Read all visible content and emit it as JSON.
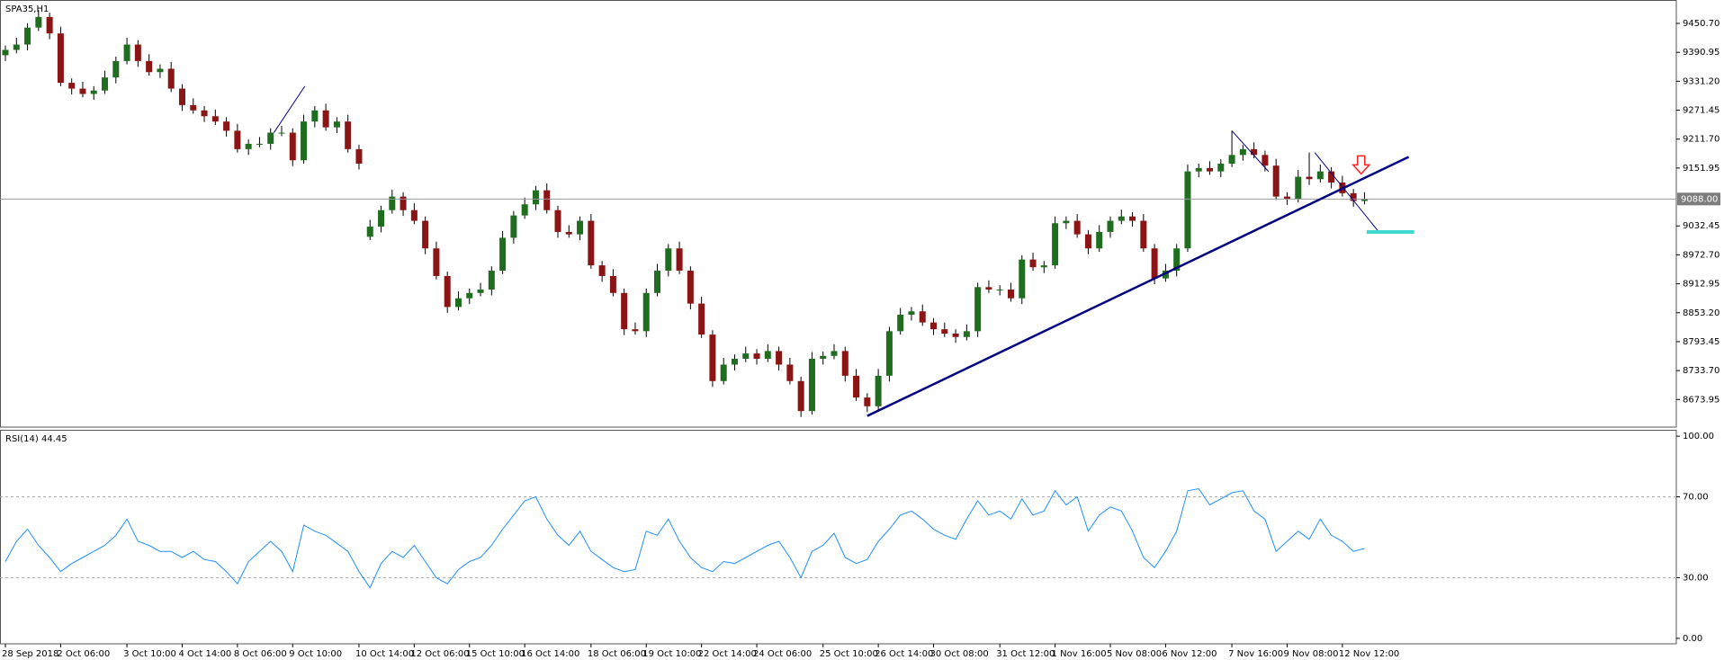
{
  "chart_data": [
    {
      "type": "candlestick",
      "title": "SPA35,H1",
      "categories": [
        "28 Sep 2018",
        null,
        null,
        null,
        null,
        "2 Oct 06:00",
        null,
        null,
        null,
        null,
        null,
        "3 Oct 10:00",
        null,
        null,
        null,
        null,
        "4 Oct 14:00",
        null,
        null,
        null,
        null,
        "8 Oct 06:00",
        null,
        null,
        null,
        null,
        "9 Oct 10:00",
        null,
        null,
        null,
        null,
        null,
        "10 Oct 14:00",
        null,
        null,
        null,
        null,
        "12 Oct 06:00",
        null,
        null,
        null,
        null,
        "15 Oct 10:00",
        null,
        null,
        null,
        null,
        "16 Oct 14:00",
        null,
        null,
        null,
        null,
        null,
        "18 Oct 06:00",
        null,
        null,
        null,
        null,
        "19 Oct 10:00",
        null,
        null,
        null,
        null,
        "22 Oct 14:00",
        null,
        null,
        null,
        null,
        "24 Oct 06:00",
        null,
        null,
        null,
        null,
        null,
        "25 Oct 10:00",
        null,
        null,
        null,
        null,
        "26 Oct 14:00",
        null,
        null,
        null,
        null,
        "30 Oct 08:00",
        null,
        null,
        null,
        null,
        null,
        "31 Oct 12:00",
        null,
        null,
        null,
        null,
        "1 Nov 16:00",
        null,
        null,
        null,
        null,
        "5 Nov 08:00",
        null,
        null,
        null,
        null,
        "6 Nov 12:00",
        null,
        null,
        null,
        null,
        null,
        "7 Nov 16:00",
        null,
        null,
        null,
        null,
        "9 Nov 08:00",
        null,
        null,
        null,
        null,
        "12 Nov 12:00",
        null,
        null
      ],
      "open": [
        9385,
        9396,
        9407,
        9442,
        9464,
        9430,
        9328,
        9316,
        9305,
        9312,
        9339,
        9373,
        9407,
        9373,
        9350,
        9357,
        9316,
        9282,
        9271,
        9259,
        9248,
        9229,
        9191,
        9202,
        9202,
        9225,
        9225,
        9168,
        9248,
        9271,
        9236,
        9248,
        9191,
        9010,
        9031,
        9065,
        9093,
        9065,
        9043,
        8986,
        8929,
        8865,
        8883,
        8894,
        8901,
        8940,
        9008,
        9054,
        9077,
        9106,
        9065,
        9020,
        9015,
        9043,
        8951,
        8929,
        8894,
        8819,
        8815,
        8894,
        8940,
        8986,
        8940,
        8872,
        8808,
        8712,
        8746,
        8758,
        8769,
        8758,
        8774,
        8746,
        8712,
        8650,
        8758,
        8764,
        8774,
        8723,
        8678,
        8660,
        8723,
        8815,
        8849,
        8856,
        8833,
        8819,
        8810,
        8803,
        8815,
        8906,
        8901,
        8901,
        8883,
        8963,
        8947,
        8951,
        9038,
        9043,
        9015,
        8986,
        9020,
        9043,
        9052,
        9043,
        8986,
        8924,
        8940,
        8986,
        9145,
        9152,
        9145,
        9161,
        9179,
        9191,
        9179,
        9157,
        9093,
        9088,
        9134,
        9129,
        9145,
        9122,
        9100,
        9084
      ],
      "high": [
        9405,
        9421,
        9451,
        9478,
        9473,
        9444,
        9337,
        9330,
        9321,
        9353,
        9382,
        9421,
        9416,
        9387,
        9366,
        9371,
        9325,
        9296,
        9280,
        9273,
        9257,
        9243,
        9211,
        9216,
        9234,
        9239,
        9234,
        9262,
        9280,
        9285,
        9257,
        9262,
        9200,
        9045,
        9074,
        9107,
        9102,
        9079,
        9052,
        9000,
        8938,
        8897,
        8903,
        8915,
        8949,
        9022,
        9063,
        9091,
        9115,
        9120,
        9074,
        9034,
        9052,
        9057,
        8960,
        8943,
        8903,
        8833,
        8903,
        8954,
        8995,
        9000,
        8949,
        8886,
        8817,
        8760,
        8767,
        8783,
        8778,
        8788,
        8783,
        8760,
        8721,
        8772,
        8773,
        8788,
        8783,
        8737,
        8687,
        8737,
        8824,
        8863,
        8865,
        8870,
        8842,
        8833,
        8819,
        8829,
        8915,
        8920,
        8910,
        8915,
        8972,
        8977,
        8960,
        9052,
        9052,
        9057,
        9024,
        9034,
        9052,
        9066,
        9061,
        9057,
        8995,
        8954,
        8995,
        9159,
        9161,
        9166,
        9170,
        9229,
        9200,
        9205,
        9188,
        9171,
        9102,
        9148,
        9184,
        9159,
        9154,
        9136,
        9109,
        9102
      ],
      "low": [
        9373,
        9389,
        9395,
        9435,
        9418,
        9321,
        9304,
        9298,
        9293,
        9305,
        9327,
        9366,
        9361,
        9343,
        9338,
        9309,
        9270,
        9264,
        9247,
        9241,
        9217,
        9184,
        9179,
        9195,
        9190,
        9218,
        9156,
        9161,
        9236,
        9229,
        9224,
        9184,
        9149,
        9003,
        9019,
        9058,
        9053,
        9036,
        8974,
        8922,
        8853,
        8858,
        8871,
        8887,
        8889,
        8933,
        8996,
        9047,
        9065,
        9058,
        9008,
        9008,
        9003,
        8944,
        8917,
        8887,
        8807,
        8808,
        8803,
        8887,
        8928,
        8933,
        8860,
        8801,
        8700,
        8705,
        8734,
        8751,
        8746,
        8751,
        8734,
        8705,
        8638,
        8643,
        8746,
        8757,
        8711,
        8671,
        8648,
        8653,
        8711,
        8808,
        8837,
        8826,
        8807,
        8803,
        8791,
        8796,
        8803,
        8894,
        8889,
        8876,
        8871,
        8940,
        8935,
        8944,
        9026,
        9008,
        8974,
        8979,
        9008,
        9036,
        9031,
        8979,
        8912,
        8917,
        8928,
        8979,
        9133,
        9138,
        9133,
        9154,
        9167,
        9172,
        9145,
        9086,
        9076,
        9081,
        9117,
        9122,
        9110,
        9093,
        9072,
        9077
      ],
      "close": [
        9396,
        9407,
        9442,
        9464,
        9430,
        9328,
        9316,
        9305,
        9312,
        9339,
        9373,
        9407,
        9373,
        9350,
        9357,
        9316,
        9282,
        9271,
        9259,
        9248,
        9229,
        9191,
        9202,
        9202,
        9225,
        9225,
        9168,
        9248,
        9271,
        9236,
        9248,
        9191,
        9161,
        9031,
        9065,
        9093,
        9065,
        9043,
        8986,
        8929,
        8865,
        8883,
        8894,
        8901,
        8940,
        9008,
        9054,
        9077,
        9106,
        9065,
        9020,
        9015,
        9043,
        8951,
        8929,
        8894,
        8819,
        8815,
        8894,
        8940,
        8986,
        8940,
        8872,
        8808,
        8712,
        8746,
        8758,
        8769,
        8758,
        8774,
        8746,
        8712,
        8650,
        8758,
        8764,
        8774,
        8723,
        8678,
        8660,
        8723,
        8815,
        8849,
        8856,
        8833,
        8819,
        8810,
        8803,
        8815,
        8906,
        8901,
        8901,
        8883,
        8963,
        8947,
        8951,
        9038,
        9043,
        9015,
        8986,
        9020,
        9043,
        9052,
        9043,
        8986,
        8924,
        8940,
        8986,
        9145,
        9152,
        9145,
        9161,
        9179,
        9191,
        9179,
        9157,
        9093,
        9088,
        9134,
        9129,
        9145,
        9122,
        9100,
        9084,
        9088
      ],
      "up_color": "#1f6e1f",
      "down_color": "#8b1414",
      "wick_color": "#000000",
      "ylim": [
        8616.9,
        9495.3
      ],
      "yticks": [
        {
          "value": 9450.7,
          "label": "9450.70"
        },
        {
          "value": 9390.95,
          "label": "9390.95"
        },
        {
          "value": 9331.2,
          "label": "9331.20"
        },
        {
          "value": 9271.45,
          "label": "9271.45"
        },
        {
          "value": 9211.7,
          "label": "9211.70"
        },
        {
          "value": 9151.95,
          "label": "9151.95"
        },
        {
          "value": 9032.45,
          "label": "9032.45"
        },
        {
          "value": 8972.7,
          "label": "8972.70"
        },
        {
          "value": 8912.95,
          "label": "8912.95"
        },
        {
          "value": 8853.2,
          "label": "8853.20"
        },
        {
          "value": 8793.45,
          "label": "8793.45"
        },
        {
          "value": 8733.7,
          "label": "8733.70"
        },
        {
          "value": 8673.95,
          "label": "8673.95"
        }
      ],
      "current_price": {
        "value": 9088,
        "label": "9088.00"
      },
      "drawings": [
        {
          "x": [
            78,
            127
          ],
          "y": [
            8640,
            9175
          ],
          "color": "#000080",
          "width": 2.5
        },
        {
          "x": [
            24.3,
            27.1
          ],
          "y": [
            9225,
            9321
          ],
          "color": "#000080",
          "width": 1
        },
        {
          "x": [
            111,
            114.3
          ],
          "y": [
            9229,
            9145
          ],
          "color": "#000080",
          "width": 1
        },
        {
          "x": [
            118.5,
            124.3
          ],
          "y": [
            9184,
            9020
          ],
          "color": "#000080",
          "width": 1
        },
        {
          "x": [
            123.2,
            127.5
          ],
          "y": [
            9020,
            9020
          ],
          "color": "#40d8d0",
          "width": 4
        }
      ],
      "arrow": {
        "x": 122.7,
        "y": 9140,
        "color": "#ff2020"
      }
    },
    {
      "type": "line",
      "title": "RSI(14) 44.45",
      "color": "#1e90ff",
      "values": [
        38,
        48,
        54,
        46,
        40,
        33,
        37,
        40,
        43,
        46,
        51,
        59,
        48,
        46,
        43,
        43,
        40,
        43,
        39,
        38,
        33,
        27,
        38,
        43,
        48,
        43,
        33,
        56,
        53,
        51,
        47,
        43,
        33,
        25,
        37,
        43,
        40,
        46,
        38,
        30,
        27,
        34,
        38,
        40,
        46,
        54,
        61,
        68,
        70,
        59,
        51,
        46,
        53,
        43,
        39,
        35,
        33,
        34,
        53,
        51,
        59,
        48,
        40,
        35,
        33,
        38,
        37,
        40,
        43,
        46,
        48,
        40,
        30,
        43,
        46,
        52,
        40,
        37,
        39,
        48,
        54,
        61,
        63,
        59,
        54,
        51,
        49,
        59,
        68,
        61,
        63,
        59,
        69,
        61,
        63,
        73,
        66,
        70,
        53,
        61,
        65,
        63,
        53,
        40,
        35,
        43,
        53,
        73,
        74,
        66,
        69,
        72,
        73,
        63,
        59,
        43,
        48,
        53,
        49,
        59,
        51,
        48,
        43,
        44.45
      ],
      "ylim": [
        -2.7,
        102.7
      ],
      "yticks": [
        {
          "value": 100,
          "label": "100.00"
        },
        {
          "value": 70,
          "label": "70.00"
        },
        {
          "value": 30,
          "label": "30.00"
        },
        {
          "value": 0,
          "label": "0.00"
        }
      ],
      "levels": [
        70,
        30
      ]
    }
  ]
}
